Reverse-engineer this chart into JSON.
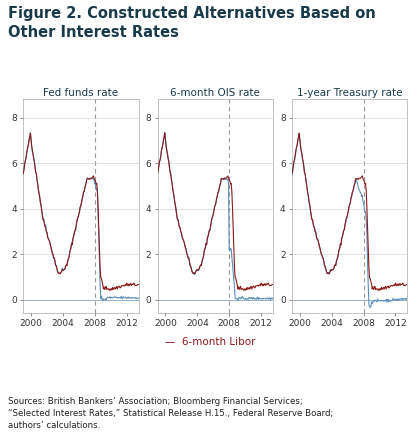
{
  "title": "Figure 2. Constructed Alternatives Based on\nOther Interest Rates",
  "title_fontsize": 10.5,
  "subplots": [
    {
      "title": "Fed funds rate"
    },
    {
      "title": "6-month OIS rate"
    },
    {
      "title": "1-year Treasury rate"
    }
  ],
  "x_ticks": [
    2000,
    2004,
    2008,
    2012
  ],
  "y_ticks": [
    0,
    2,
    4,
    6,
    8
  ],
  "ylim": [
    -0.6,
    8.8
  ],
  "xlim": [
    1999.0,
    2013.5
  ],
  "vline_x": 2008.0,
  "libor_color": "#8B1A1A",
  "alt_color": "#5B8DB8",
  "hline_color": "#5B8DB8",
  "vline_color": "#999999",
  "footnote": "Sources: British Bankers’ Association; Bloomberg Financial Services;\n“Selected Interest Rates,” Statistical Release H.15., Federal Reserve Board;\nauthors’ calculations.",
  "legend_label": "—  6-month Libor",
  "background_color": "#ffffff",
  "text_color": "#1a3a4a",
  "grid_color": "#cccccc"
}
